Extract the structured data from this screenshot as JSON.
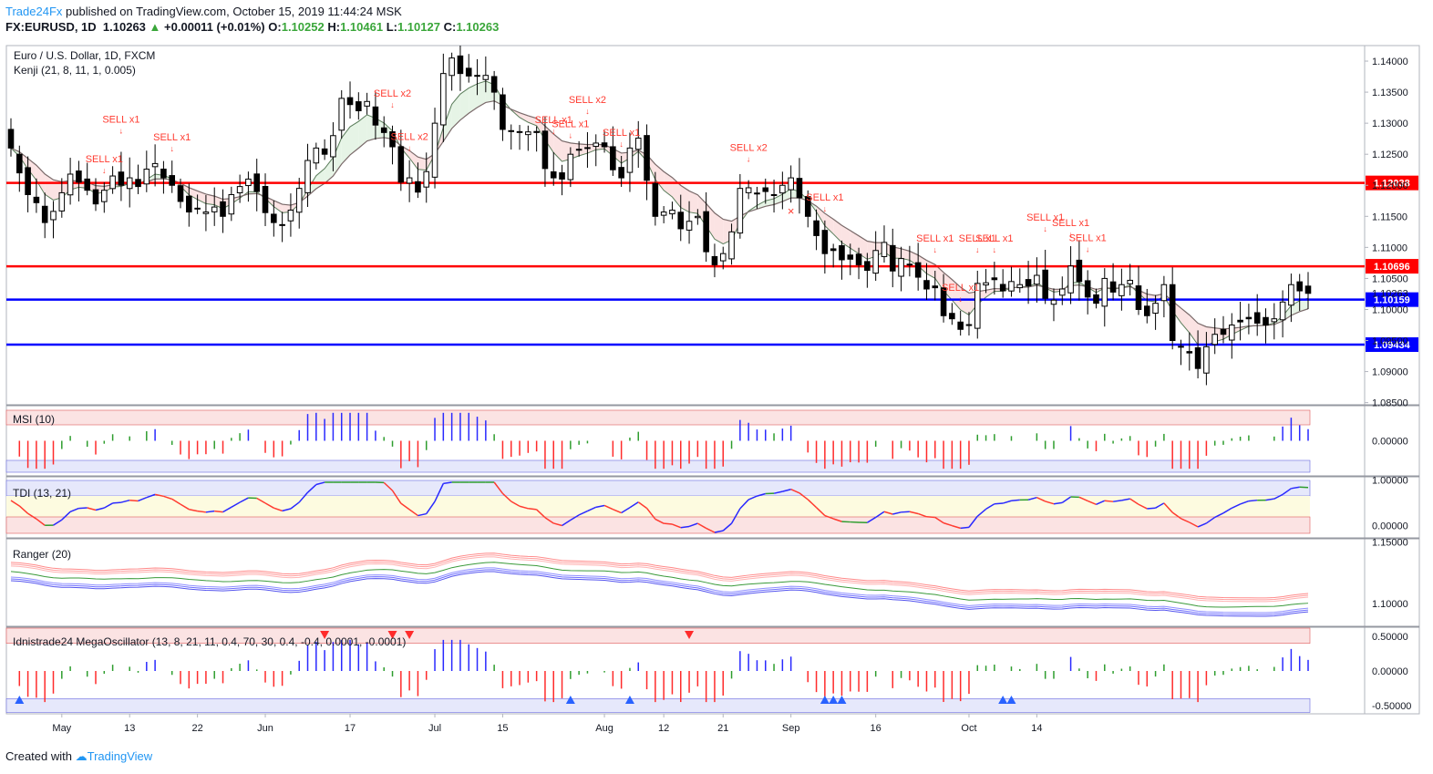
{
  "header": {
    "publisher": "Trade24Fx",
    "published_text": "published on TradingView.com, October 15, 2019 11:44:24 MSK",
    "symbol": "FX:EURUSD, 1D",
    "last": "1.10263",
    "change": "+0.00011 (+0.01%)",
    "change_arrow": "▲",
    "o_label": "O:",
    "o": "1.10252",
    "h_label": "H:",
    "h": "1.10461",
    "l_label": "L:",
    "l": "1.10127",
    "c_label": "C:",
    "c": "1.10263"
  },
  "footer": {
    "created_with": "Created with",
    "brand": "TradingView"
  },
  "colors": {
    "bull": "#ffffff",
    "bear": "#000000",
    "red_line": "#ff0000",
    "blue_line": "#0000ff",
    "sell": "#ff3b30",
    "buy": "#2962ff",
    "ema_fast": "#ff9999",
    "ema_slow": "#2e7d32"
  },
  "chart_data": [
    {
      "type": "candlestick",
      "title": "Euro / U.S. Dollar, 1D, FXCM",
      "indicator": "Kenji (21, 8, 11, 1, 0.005)",
      "x_tick_labels": [
        "May",
        "13",
        "22",
        "Jun",
        "17",
        "Jul",
        "15",
        "Aug",
        "12",
        "21",
        "Sep",
        "16",
        "Oct",
        "14"
      ],
      "y_tick_labels": [
        "1.14000",
        "1.13500",
        "1.13000",
        "1.12500",
        "1.12000",
        "1.11500",
        "1.11000",
        "1.10500",
        "1.10000",
        "1.09500",
        "1.09000",
        "1.08500"
      ],
      "ylim": [
        1.0848,
        1.1425
      ],
      "last_price_label": "1.10263",
      "horizontal_levels": [
        {
          "value": 1.12038,
          "label": "1.12038",
          "color": "red"
        },
        {
          "value": 1.10696,
          "label": "1.10696",
          "color": "red"
        },
        {
          "value": 1.10159,
          "label": "1.10159",
          "color": "blue"
        },
        {
          "value": 1.09434,
          "label": "1.09434",
          "color": "blue"
        }
      ],
      "close": [
        1.126,
        1.122,
        1.1185,
        1.1172,
        1.114,
        1.1158,
        1.1188,
        1.1218,
        1.1205,
        1.1192,
        1.117,
        1.1192,
        1.1215,
        1.12,
        1.1212,
        1.1198,
        1.1226,
        1.1235,
        1.1212,
        1.12,
        1.1174,
        1.1157,
        1.1162,
        1.1157,
        1.1165,
        1.115,
        1.1185,
        1.1198,
        1.121,
        1.119,
        1.1156,
        1.114,
        1.1136,
        1.116,
        1.1195,
        1.124,
        1.126,
        1.125,
        1.128,
        1.134,
        1.133,
        1.132,
        1.1335,
        1.1297,
        1.1285,
        1.1262,
        1.1205,
        1.1212,
        1.1189,
        1.1222,
        1.13,
        1.138,
        1.1405,
        1.138,
        1.1376,
        1.1377,
        1.1377,
        1.135,
        1.129,
        1.1288,
        1.1285,
        1.1286,
        1.1285,
        1.1227,
        1.1212,
        1.121,
        1.125,
        1.1258,
        1.126,
        1.1268,
        1.1262,
        1.1225,
        1.1212,
        1.126,
        1.1276,
        1.1208,
        1.115,
        1.1157,
        1.116,
        1.113,
        1.1142,
        1.115,
        1.1093,
        1.1072,
        1.109,
        1.1125,
        1.1195,
        1.1196,
        1.1186,
        1.119,
        1.1185,
        1.12,
        1.1212,
        1.118,
        1.115,
        1.1119,
        1.109,
        1.1095,
        1.108,
        1.1081,
        1.1072,
        1.1063,
        1.1095,
        1.1108,
        1.1062,
        1.1082,
        1.1073,
        1.1052,
        1.1033,
        1.1035,
        1.099,
        1.0985,
        1.0968,
        1.0975,
        1.1042,
        1.1043,
        1.1048,
        1.103,
        1.1045,
        1.104,
        1.1038,
        1.1055,
        1.1018,
        1.1015,
        1.1033,
        1.107,
        1.1045,
        1.102,
        1.101,
        1.105,
        1.1028,
        1.104,
        1.1047,
        1.1,
        1.099,
        1.101,
        1.104,
        1.095,
        1.094,
        1.093,
        1.0905,
        1.094,
        1.096,
        1.096,
        1.0975,
        1.098,
        1.0985,
        1.0978,
        1.0975,
        1.0985,
        1.1012,
        1.104,
        1.103,
        1.1026
      ]
    },
    {
      "type": "bar",
      "title": "MSI (10)",
      "y_tick_labels": [
        "0.00000"
      ],
      "ylim": [
        -1.1,
        1.1
      ]
    },
    {
      "type": "line",
      "title": "TDI (13, 21)",
      "y_tick_labels": [
        "1.00000",
        "0.00000"
      ],
      "ylim": [
        -0.25,
        1.05
      ]
    },
    {
      "type": "line",
      "title": "Ranger (20)",
      "y_tick_labels": [
        "1.15000",
        "1.10000"
      ],
      "ylim": [
        1.082,
        1.152
      ]
    },
    {
      "type": "bar",
      "title": "Idnistrade24 MegaOscillator (13, 8, 21, 11, 0.4, 70, 30, 0.4, -0.4, 0.0001, -0.0001)",
      "y_tick_labels": [
        "0.50000",
        "0.00000",
        "-0.50000"
      ],
      "ylim": [
        -0.62,
        0.62
      ]
    }
  ],
  "signals": [
    {
      "text": "SELL x1"
    },
    {
      "text": "SELL x1"
    },
    {
      "text": "SELL x1"
    },
    {
      "text": "SELL x2"
    },
    {
      "text": "SELL x2"
    },
    {
      "text": "SELL x1"
    },
    {
      "text": "SELL x1"
    },
    {
      "text": "SELL x2"
    },
    {
      "text": "SELL x1"
    },
    {
      "text": "SELL x2"
    },
    {
      "text": "SELL x1"
    },
    {
      "text": "SELL x1"
    },
    {
      "text": "SELL x1"
    },
    {
      "text": "SELL x1"
    },
    {
      "text": "SELL x1"
    },
    {
      "text": "SELL x1"
    },
    {
      "text": "SELL x1"
    },
    {
      "text": "SELL x1"
    }
  ]
}
